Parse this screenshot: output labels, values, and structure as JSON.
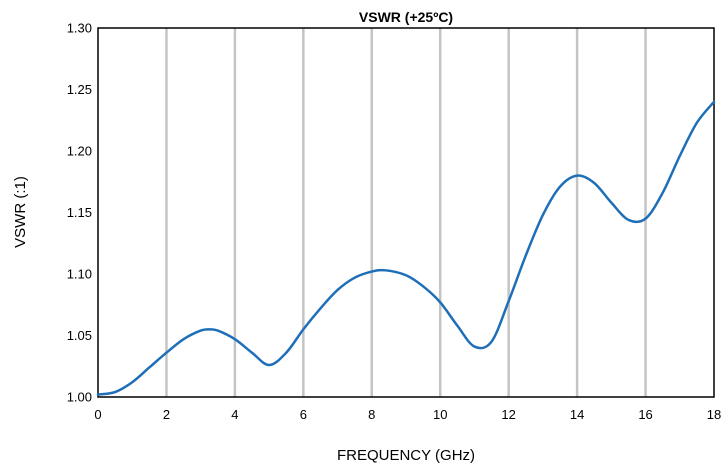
{
  "chart_data": {
    "type": "line",
    "title": "VSWR (+25ºC)",
    "xlabel": "FREQUENCY  (GHz)",
    "ylabel": "VSWR (:1)",
    "xlim": [
      0,
      18
    ],
    "ylim": [
      1.0,
      1.3
    ],
    "x_ticks": [
      0,
      2,
      4,
      6,
      8,
      10,
      12,
      14,
      16,
      18
    ],
    "y_ticks": [
      "1.00",
      "1.05",
      "1.10",
      "1.15",
      "1.20",
      "1.25",
      "1.30"
    ],
    "grid": "vertical",
    "series": [
      {
        "color": "#1f6fb8",
        "points": [
          [
            0,
            1.002
          ],
          [
            0.5,
            1.004
          ],
          [
            1.0,
            1.012
          ],
          [
            1.5,
            1.024
          ],
          [
            2.0,
            1.036
          ],
          [
            2.5,
            1.047
          ],
          [
            3.0,
            1.054
          ],
          [
            3.25,
            1.055
          ],
          [
            3.5,
            1.054
          ],
          [
            4.0,
            1.047
          ],
          [
            4.5,
            1.036
          ],
          [
            5.0,
            1.026
          ],
          [
            5.5,
            1.036
          ],
          [
            6.0,
            1.055
          ],
          [
            6.5,
            1.072
          ],
          [
            7.0,
            1.087
          ],
          [
            7.5,
            1.097
          ],
          [
            8.0,
            1.102
          ],
          [
            8.4,
            1.103
          ],
          [
            9.0,
            1.099
          ],
          [
            9.5,
            1.09
          ],
          [
            10.0,
            1.077
          ],
          [
            10.5,
            1.058
          ],
          [
            11.0,
            1.041
          ],
          [
            11.5,
            1.045
          ],
          [
            12.0,
            1.078
          ],
          [
            12.5,
            1.115
          ],
          [
            13.0,
            1.148
          ],
          [
            13.5,
            1.171
          ],
          [
            14.0,
            1.18
          ],
          [
            14.5,
            1.174
          ],
          [
            15.0,
            1.158
          ],
          [
            15.5,
            1.144
          ],
          [
            16.0,
            1.145
          ],
          [
            16.5,
            1.166
          ],
          [
            17.0,
            1.196
          ],
          [
            17.5,
            1.223
          ],
          [
            18.0,
            1.24
          ]
        ]
      }
    ]
  }
}
